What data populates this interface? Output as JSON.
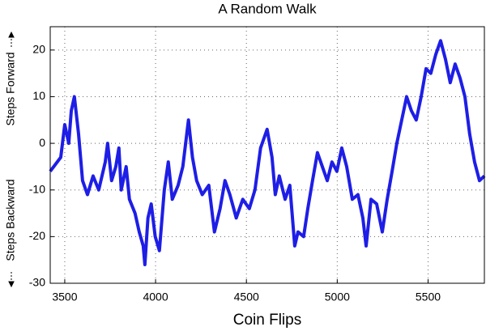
{
  "chart_data": {
    "type": "line",
    "title": "A Random Walk",
    "xlabel": "Coin Flips",
    "ylabel_forward": "Steps Forward",
    "ylabel_backward": "Steps Backward",
    "x": [
      3420,
      3478,
      3500,
      3522,
      3536,
      3553,
      3576,
      3598,
      3625,
      3656,
      3687,
      3723,
      3736,
      3758,
      3781,
      3798,
      3811,
      3838,
      3856,
      3887,
      3910,
      3932,
      3941,
      3958,
      3976,
      3998,
      4021,
      4048,
      4070,
      4092,
      4124,
      4150,
      4181,
      4203,
      4226,
      4257,
      4293,
      4324,
      4355,
      4382,
      4409,
      4444,
      4480,
      4516,
      4547,
      4578,
      4614,
      4641,
      4659,
      4681,
      4713,
      4739,
      4766,
      4784,
      4815,
      4838,
      4864,
      4891,
      4918,
      4945,
      4971,
      4998,
      5025,
      5052,
      5083,
      5114,
      5141,
      5159,
      5186,
      5217,
      5248,
      5275,
      5302,
      5328,
      5355,
      5382,
      5408,
      5435,
      5462,
      5489,
      5515,
      5542,
      5569,
      5596,
      5622,
      5649,
      5676,
      5703,
      5729,
      5756,
      5783,
      5810
    ],
    "series": [
      {
        "color": "#1e1ee6",
        "values": [
          -6,
          -3,
          4,
          0,
          7,
          10,
          2,
          -8,
          -11,
          -7,
          -10,
          -4,
          0,
          -8,
          -5,
          -1,
          -10,
          -5,
          -12,
          -15,
          -19,
          -22,
          -26,
          -16,
          -13,
          -20,
          -23,
          -10,
          -4,
          -12,
          -9,
          -5,
          5,
          -3,
          -8,
          -11,
          -9,
          -19,
          -14,
          -8,
          -11,
          -16,
          -12,
          -14,
          -10,
          -1,
          3,
          -3,
          -11,
          -7,
          -12,
          -9,
          -22,
          -19,
          -20,
          -14,
          -8,
          -2,
          -5,
          -8,
          -4,
          -6,
          -1,
          -5,
          -12,
          -11,
          -16,
          -22,
          -12,
          -13,
          -19,
          -12,
          -6,
          0,
          5,
          10,
          7,
          5,
          10,
          16,
          15,
          19,
          22,
          18,
          13,
          17,
          14,
          10,
          2,
          -4,
          -8,
          -7
        ]
      }
    ],
    "xlim": [
      3420,
      5810
    ],
    "xticks": [
      3500,
      4000,
      4500,
      5000,
      5500
    ],
    "ylim": [
      -30,
      25
    ],
    "yticks": [
      -30,
      -20,
      -10,
      0,
      10,
      20
    ],
    "grid": true
  }
}
